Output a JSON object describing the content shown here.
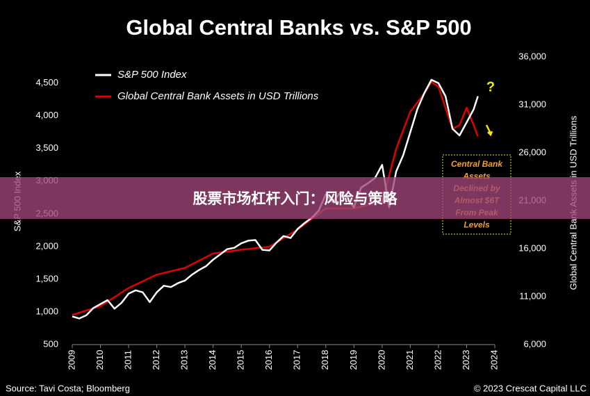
{
  "chart_data": {
    "type": "line",
    "title": "Global Central Banks vs. S&P 500",
    "y_label": "S&P 500 Index",
    "y2_label": "Global Central Bank Assets in USD Trillions",
    "source": "Source: Tavi Costa; Bloomberg",
    "copyright": "© 2023 Crescat Capital LLC",
    "xlim": [
      2009,
      2024
    ],
    "xticks": [
      2009,
      2010,
      2011,
      2012,
      2013,
      2014,
      2015,
      2016,
      2017,
      2018,
      2019,
      2020,
      2021,
      2022,
      2023,
      2024
    ],
    "ylim": [
      500,
      4900
    ],
    "yticks": [
      500,
      {
        "value": 1000,
        "label": "1,000"
      },
      {
        "value": 1500,
        "label": "1,500"
      },
      {
        "value": 2000,
        "label": "2,000"
      },
      {
        "value": 2500,
        "label": "2,500"
      },
      {
        "value": 3000,
        "label": "3,000"
      },
      {
        "value": 3500,
        "label": "3,500"
      },
      {
        "value": 4000,
        "label": "4,000"
      },
      {
        "value": 4500,
        "label": "4,500"
      }
    ],
    "y2lim": [
      6000,
      36000
    ],
    "y2ticks": [
      {
        "value": 6000,
        "label": "6,000"
      },
      {
        "value": 11000,
        "label": "11,000"
      },
      {
        "value": 16000,
        "label": "16,000"
      },
      {
        "value": 21000,
        "label": "21,000"
      },
      {
        "value": 26000,
        "label": "26,000"
      },
      {
        "value": 31000,
        "label": "31,000"
      },
      {
        "value": 36000,
        "label": "36,000"
      }
    ],
    "series": [
      {
        "name": "S&P 500 Index",
        "color": "#ffffff",
        "x": [
          2009.0,
          2009.25,
          2009.5,
          2009.75,
          2010.0,
          2010.25,
          2010.5,
          2010.75,
          2011.0,
          2011.25,
          2011.5,
          2011.75,
          2012.0,
          2012.25,
          2012.5,
          2012.75,
          2013.0,
          2013.25,
          2013.5,
          2013.75,
          2014.0,
          2014.25,
          2014.5,
          2014.75,
          2015.0,
          2015.25,
          2015.5,
          2015.75,
          2016.0,
          2016.25,
          2016.5,
          2016.75,
          2017.0,
          2017.25,
          2017.5,
          2017.75,
          2018.0,
          2018.25,
          2018.5,
          2018.75,
          2019.0,
          2019.25,
          2019.5,
          2019.75,
          2020.0,
          2020.25,
          2020.5,
          2020.75,
          2021.0,
          2021.25,
          2021.5,
          2021.75,
          2022.0,
          2022.25,
          2022.5,
          2022.75,
          2023.0,
          2023.25,
          2023.4
        ],
        "values": [
          930,
          900,
          950,
          1060,
          1120,
          1180,
          1050,
          1140,
          1280,
          1330,
          1300,
          1150,
          1300,
          1400,
          1380,
          1440,
          1480,
          1570,
          1640,
          1700,
          1800,
          1880,
          1960,
          1980,
          2050,
          2090,
          2100,
          1950,
          1940,
          2060,
          2160,
          2130,
          2270,
          2360,
          2440,
          2550,
          2800,
          2680,
          2820,
          2750,
          2600,
          2900,
          2970,
          3050,
          3250,
          2600,
          3150,
          3400,
          3750,
          4100,
          4350,
          4550,
          4500,
          4300,
          3800,
          3700,
          3900,
          4100,
          4300
        ]
      },
      {
        "name": "Global Central Bank Assets in USD Trillions",
        "color": "#e00000",
        "axis": "y2",
        "x": [
          2009.0,
          2010.0,
          2011.0,
          2012.0,
          2013.0,
          2014.0,
          2015.0,
          2016.0,
          2017.0,
          2018.0,
          2019.0,
          2020.0,
          2020.5,
          2021.0,
          2021.5,
          2021.75,
          2022.0,
          2022.5,
          2022.75,
          2023.0,
          2023.25,
          2023.4
        ],
        "values": [
          9100,
          10000,
          11900,
          13300,
          14000,
          15500,
          15900,
          16200,
          18000,
          20200,
          20200,
          20900,
          26400,
          30300,
          32200,
          33400,
          32900,
          28500,
          28900,
          30700,
          28900,
          27700
        ]
      }
    ],
    "annotations": {
      "question": "?",
      "box": [
        "Central Bank",
        "Assets",
        "Declined by",
        "Almost $6T",
        "From Peak",
        "Levels"
      ]
    },
    "banner": "股票市场杠杆入门：风险与策略"
  }
}
